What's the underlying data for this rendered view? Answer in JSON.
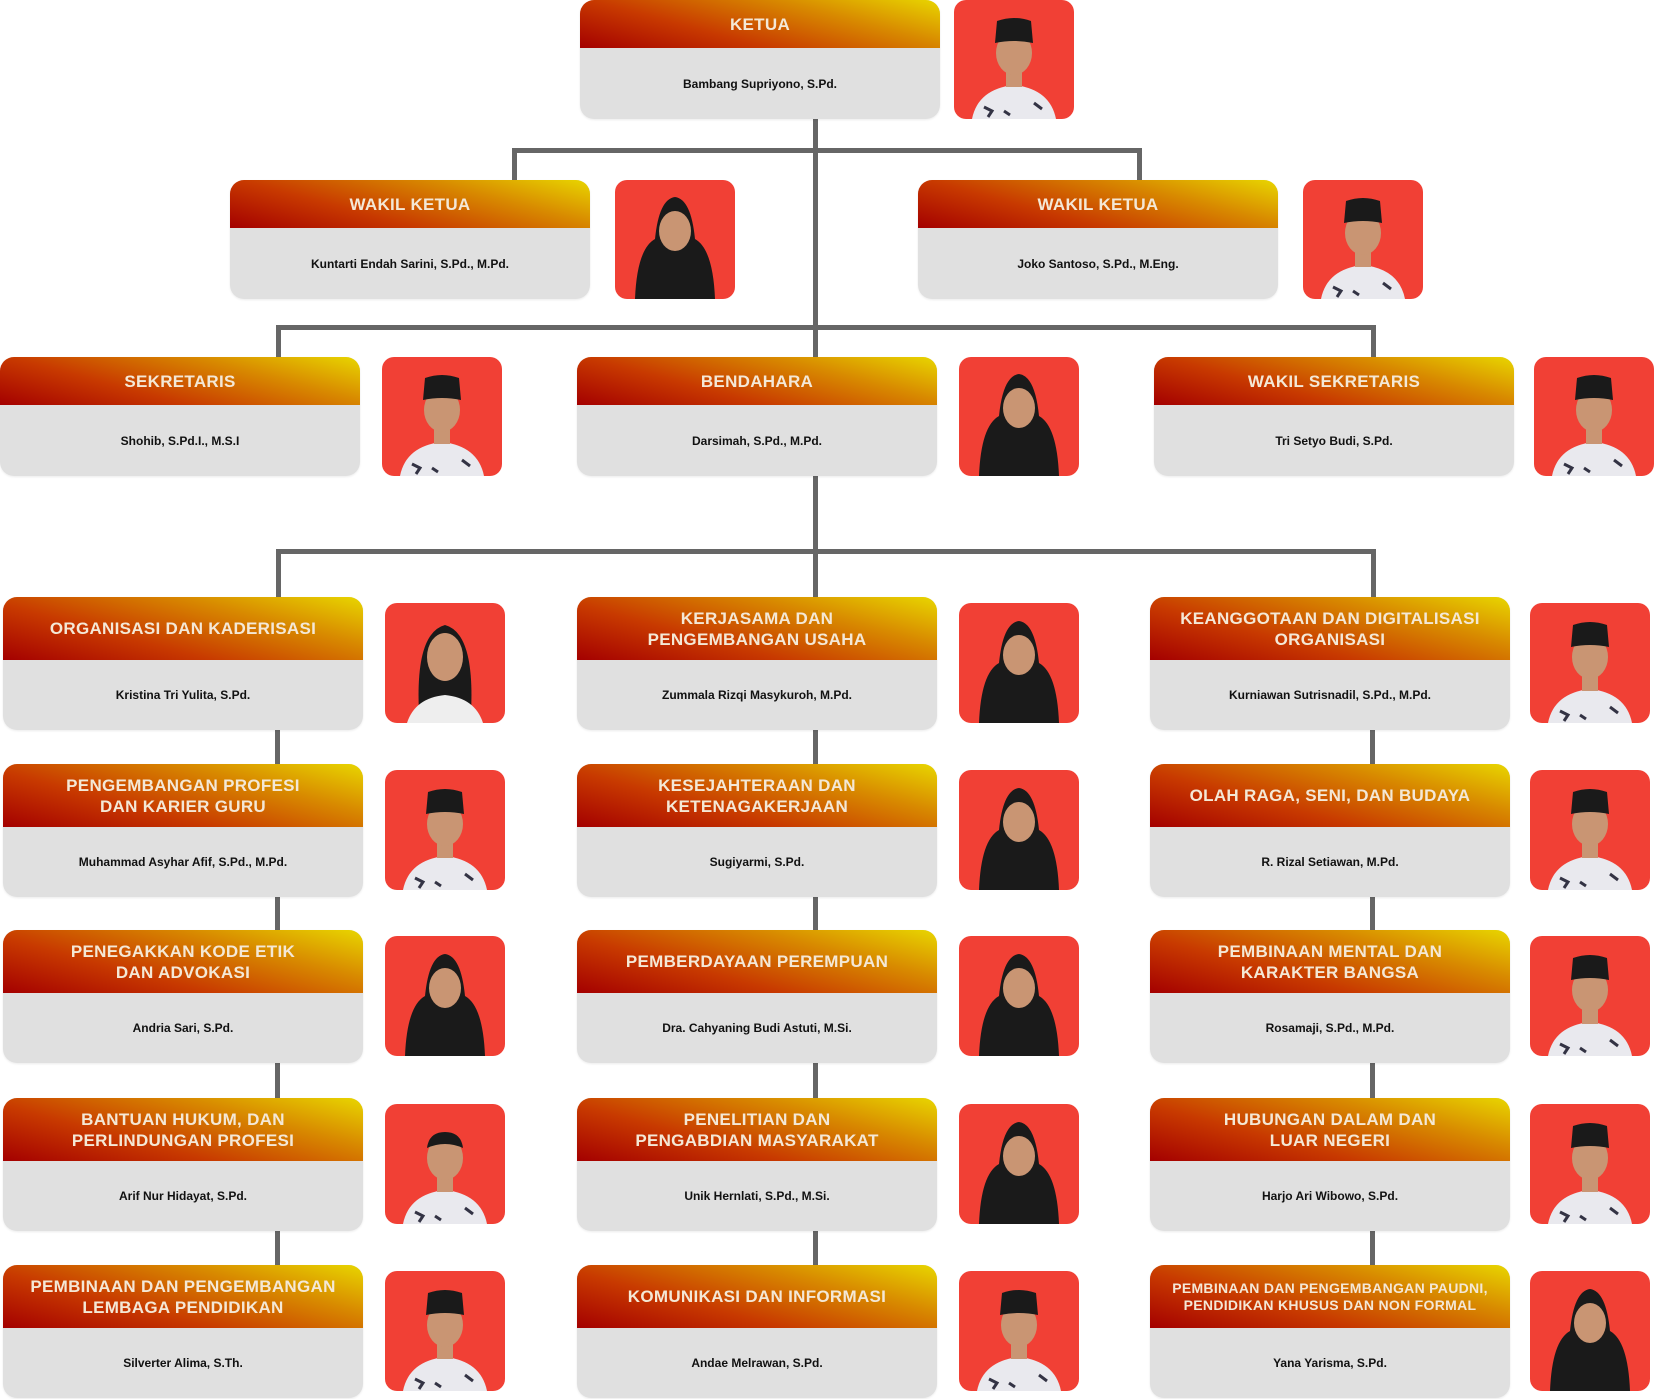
{
  "colors": {
    "header_start": "#a40000",
    "header_end": "#e8d600",
    "body": "#e0e0e0",
    "photo_bg": "#f14035",
    "connector": "#666666"
  },
  "top": [
    {
      "title": "KETUA",
      "name": "Bambang Supriyono, S.Pd.",
      "photo": "male-peci"
    },
    {
      "title": "WAKIL KETUA",
      "name": "Kuntarti Endah Sarini, S.Pd., M.Pd.",
      "photo": "female-hijab"
    },
    {
      "title": "WAKIL KETUA",
      "name": "Joko Santoso, S.Pd., M.Eng.",
      "photo": "male-peci"
    },
    {
      "title": "SEKRETARIS",
      "name": "Shohib, S.Pd.I., M.S.I",
      "photo": "male-peci"
    },
    {
      "title": "BENDAHARA",
      "name": "Darsimah, S.Pd., M.Pd.",
      "photo": "female-hijab"
    },
    {
      "title": "WAKIL SEKRETARIS",
      "name": "Tri Setyo Budi, S.Pd.",
      "photo": "male-peci"
    }
  ],
  "divisions": [
    [
      {
        "title": "ORGANISASI DAN KADERISASI",
        "name": "Kristina Tri Yulita, S.Pd.",
        "photo": "female-hair"
      },
      {
        "title": "PENGEMBANGAN PROFESI\nDAN KARIER GURU",
        "name": "Muhammad Asyhar Afif, S.Pd., M.Pd.",
        "photo": "male-peci"
      },
      {
        "title": "PENEGAKKAN KODE ETIK\nDAN ADVOKASI",
        "name": "Andria Sari, S.Pd.",
        "photo": "female-hijab"
      },
      {
        "title": "BANTUAN HUKUM, DAN\nPERLINDUNGAN PROFESI",
        "name": "Arif Nur Hidayat, S.Pd.",
        "photo": "male"
      },
      {
        "title": "PEMBINAAN DAN PENGEMBANGAN\nLEMBAGA PENDIDIKAN",
        "name": "Silverter Alima, S.Th.",
        "photo": "male-peci"
      }
    ],
    [
      {
        "title": "KERJASAMA DAN\nPENGEMBANGAN USAHA",
        "name": "Zummala Rizqi Masykuroh, M.Pd.",
        "photo": "female-hijab"
      },
      {
        "title": "KESEJAHTERAAN DAN\nKETENAGAKERJAAN",
        "name": "Sugiyarmi, S.Pd.",
        "photo": "female-hijab"
      },
      {
        "title": "PEMBERDAYAAN PEREMPUAN",
        "name": "Dra. Cahyaning Budi Astuti, M.Si.",
        "photo": "female-hijab"
      },
      {
        "title": "PENELITIAN DAN\nPENGABDIAN MASYARAKAT",
        "name": "Unik Hernlati, S.Pd., M.Si.",
        "photo": "female-hijab"
      },
      {
        "title": "KOMUNIKASI DAN INFORMASI",
        "name": "Andae Melrawan, S.Pd.",
        "photo": "male-peci"
      }
    ],
    [
      {
        "title": "KEANGGOTAAN DAN DIGITALISASI\nORGANISASI",
        "name": "Kurniawan Sutrisnadil, S.Pd., M.Pd.",
        "photo": "male-peci"
      },
      {
        "title": "OLAH RAGA, SENI, DAN BUDAYA",
        "name": "R. Rizal Setiawan, M.Pd.",
        "photo": "male-peci"
      },
      {
        "title": "PEMBINAAN MENTAL DAN\nKARAKTER BANGSA",
        "name": "Rosamaji, S.Pd., M.Pd.",
        "photo": "male-peci"
      },
      {
        "title": "HUBUNGAN DALAM DAN\nLUAR NEGERI",
        "name": "Harjo Ari Wibowo, S.Pd.",
        "photo": "male-peci"
      },
      {
        "title": "PEMBINAAN DAN PENGEMBANGAN PAUDNI,\nPENDIDIKAN KHUSUS DAN NON FORMAL",
        "name": "Yana Yarisma, S.Pd.",
        "photo": "female-hijab"
      }
    ]
  ]
}
